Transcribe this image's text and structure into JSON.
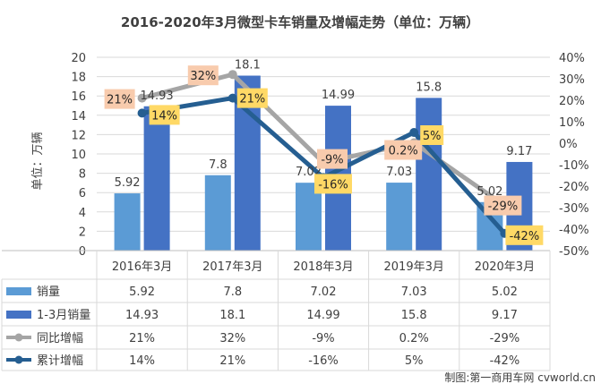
{
  "chart_data": {
    "type": "bar",
    "title": "2016-2020年3月微型卡车销量及增幅走势（单位：万辆）",
    "ylabel": "单位：万辆",
    "ylim": [
      0,
      20
    ],
    "y_ticks": [
      "0",
      "2",
      "4",
      "6",
      "8",
      "10",
      "12",
      "14",
      "16",
      "18",
      "20"
    ],
    "y2lim": [
      -50,
      40
    ],
    "y2_ticks": [
      "-50%",
      "-40%",
      "-30%",
      "-20%",
      "-10%",
      "0%",
      "10%",
      "20%",
      "30%",
      "40%"
    ],
    "categories": [
      "2016年3月",
      "2017年3月",
      "2018年3月",
      "2019年3月",
      "2020年3月"
    ],
    "bar_series": [
      {
        "name": "销量",
        "values": [
          5.92,
          7.8,
          7.02,
          7.03,
          5.02
        ],
        "labels": [
          "5.92",
          "7.8",
          "7.02",
          "7.03",
          "5.02"
        ],
        "color": "#5b9bd5"
      },
      {
        "name": "1-3月销量",
        "values": [
          14.93,
          18.1,
          14.99,
          15.8,
          9.17
        ],
        "labels": [
          "14.93",
          "18.1",
          "14.99",
          "15.8",
          "9.17"
        ],
        "color": "#4472c4"
      }
    ],
    "line_series": [
      {
        "name": "同比增幅",
        "values": [
          21,
          32,
          -9,
          0.2,
          -29
        ],
        "labels": [
          "21%",
          "32%",
          "-9%",
          "0.2%",
          "-29%"
        ],
        "color": "#a5a5a5",
        "label_bg": "#f8cbad"
      },
      {
        "name": "累计增幅",
        "values": [
          14,
          21,
          -16,
          5,
          -42
        ],
        "labels": [
          "14%",
          "21%",
          "-16%",
          "5%",
          "-42%"
        ],
        "color": "#255e91",
        "label_bg": "#ffd966"
      }
    ],
    "table": true,
    "grid": true,
    "source": "制图:第一商用车网 cvworld.cn"
  }
}
